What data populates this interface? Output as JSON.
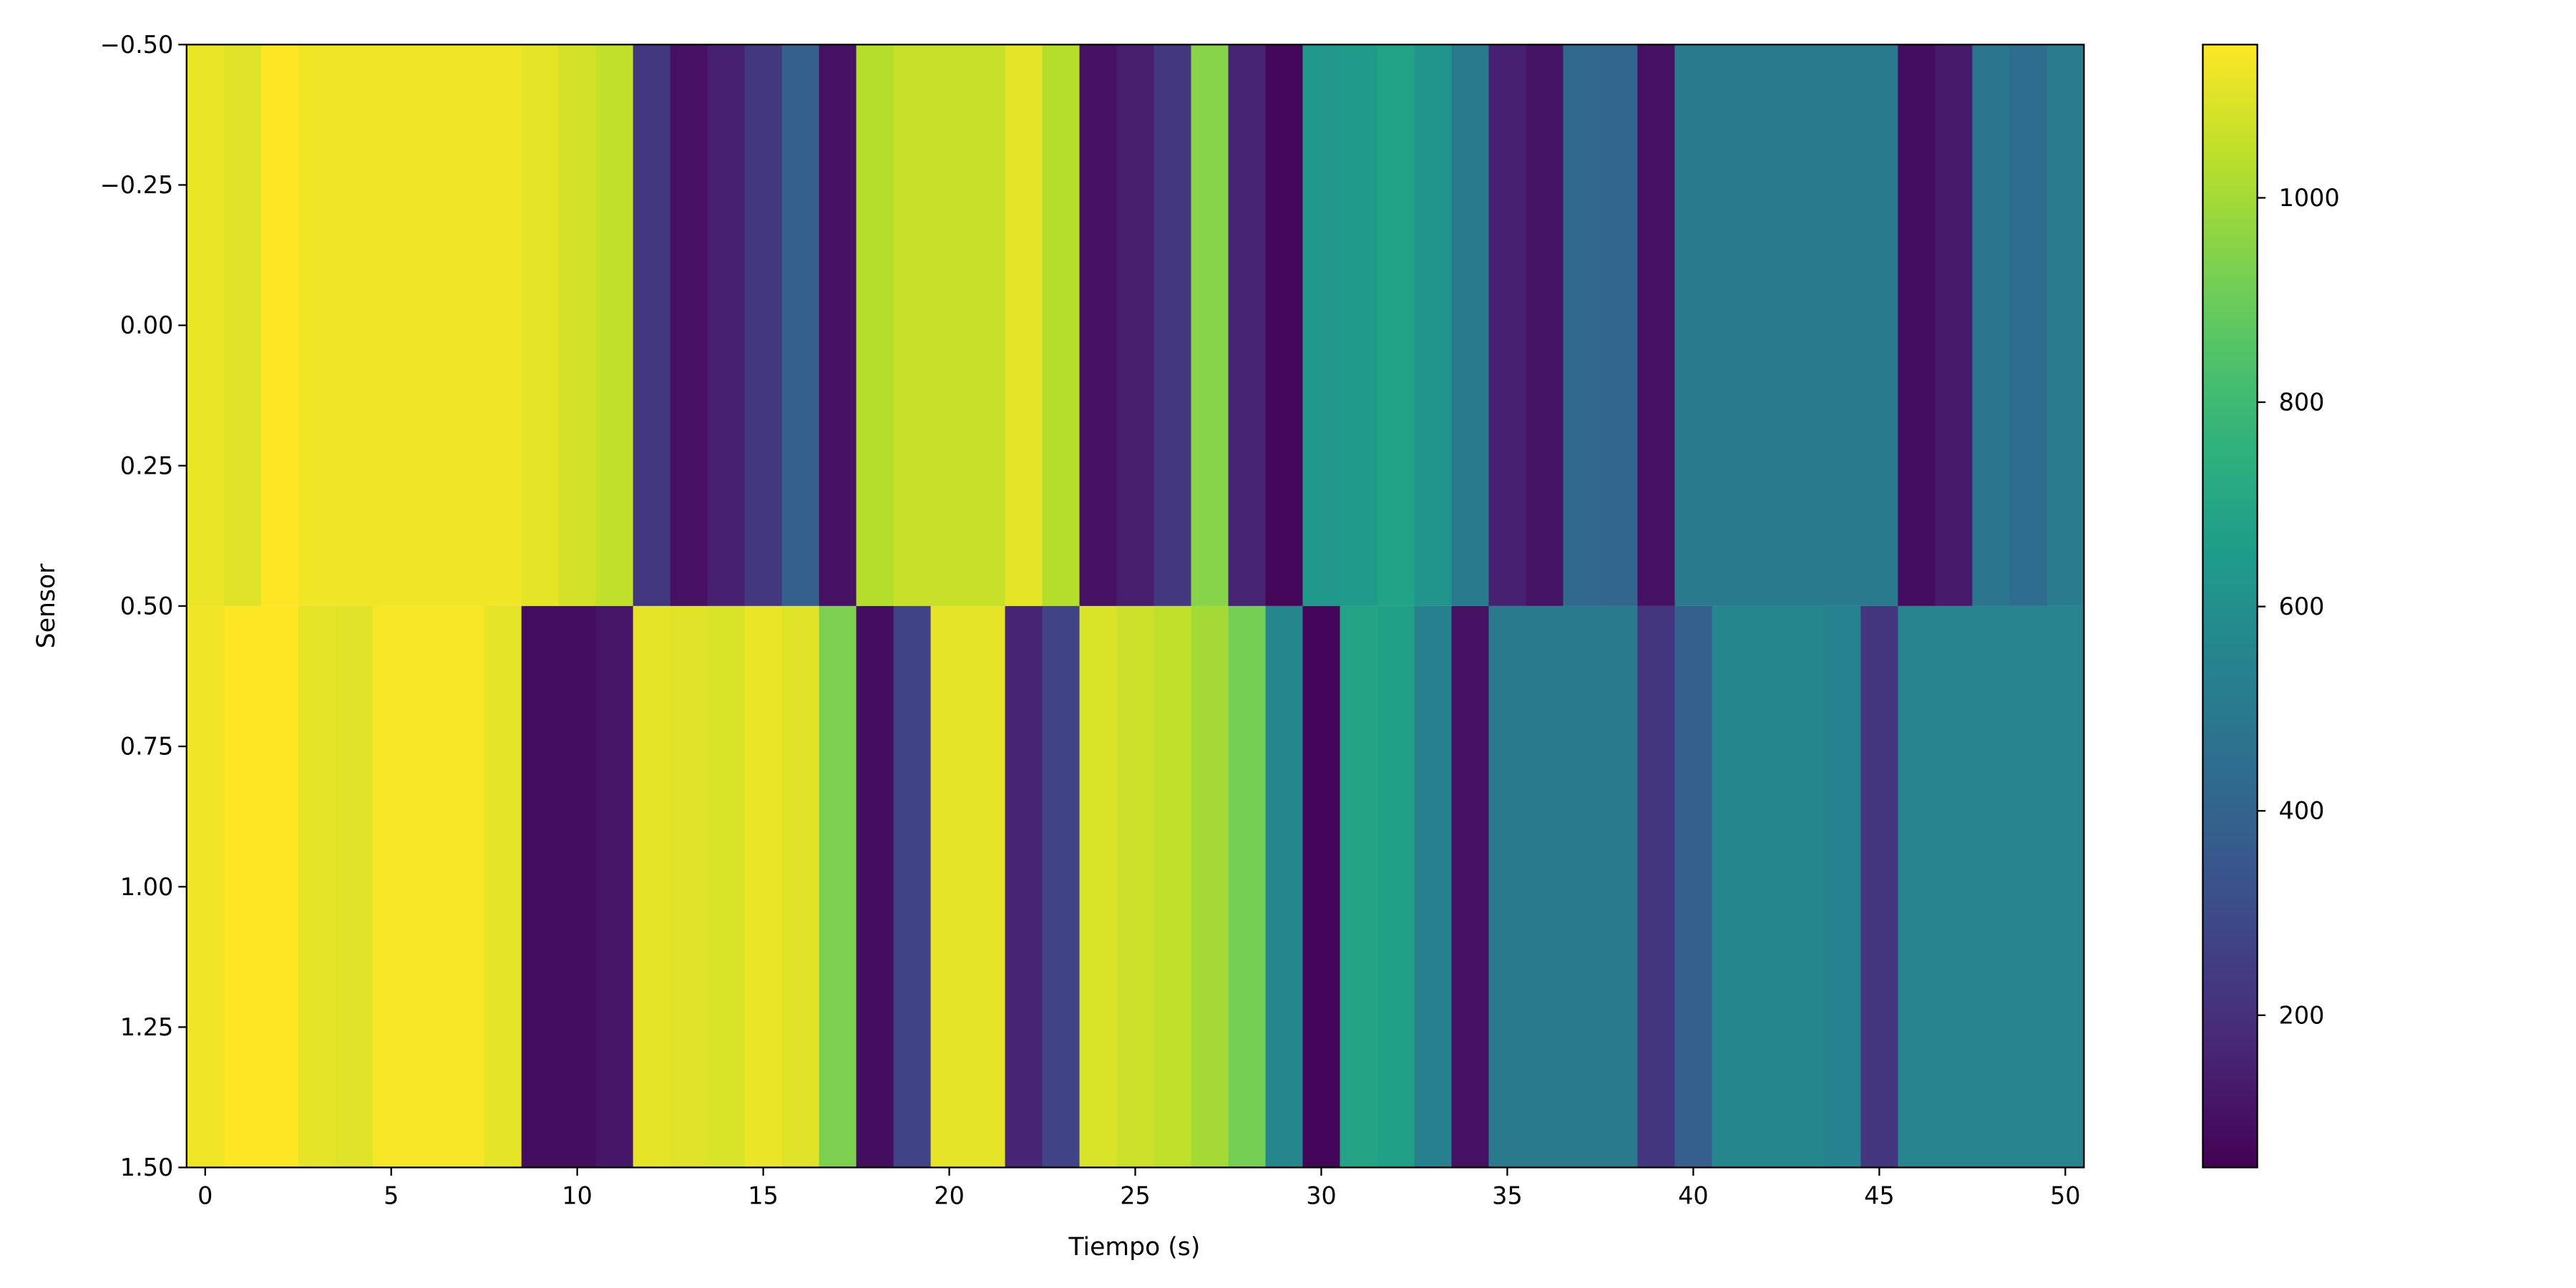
{
  "chart_data": {
    "type": "heatmap",
    "title": "",
    "xlabel": "Tiempo (s)",
    "ylabel": "Sensor",
    "x": [
      0,
      1,
      2,
      3,
      4,
      5,
      6,
      7,
      8,
      9,
      10,
      11,
      12,
      13,
      14,
      15,
      16,
      17,
      18,
      19,
      20,
      21,
      22,
      23,
      24,
      25,
      26,
      27,
      28,
      29,
      30,
      31,
      32,
      33,
      34,
      35,
      36,
      37,
      38,
      39,
      40,
      41,
      42,
      43,
      44,
      45,
      46,
      47,
      48,
      49,
      50
    ],
    "rows": [
      {
        "sensor": 0,
        "values": [
          1120,
          1100,
          1150,
          1130,
          1130,
          1130,
          1130,
          1130,
          1130,
          1110,
          1080,
          1050,
          230,
          100,
          150,
          230,
          380,
          100,
          1030,
          1060,
          1060,
          1060,
          1110,
          1030,
          100,
          140,
          230,
          950,
          160,
          70,
          640,
          650,
          680,
          620,
          500,
          150,
          110,
          420,
          410,
          100,
          500,
          500,
          500,
          500,
          500,
          500,
          90,
          130,
          480,
          440,
          510
        ]
      },
      {
        "sensor": 1,
        "values": [
          1130,
          1150,
          1150,
          1110,
          1100,
          1140,
          1140,
          1140,
          1110,
          90,
          90,
          120,
          1110,
          1100,
          1090,
          1120,
          1100,
          930,
          90,
          270,
          1110,
          1110,
          160,
          270,
          1090,
          1070,
          1050,
          1000,
          920,
          560,
          60,
          690,
          670,
          530,
          100,
          500,
          500,
          500,
          500,
          220,
          380,
          560,
          560,
          560,
          540,
          220,
          550,
          550,
          550,
          550,
          550
        ]
      }
    ],
    "xlim": [
      -0.5,
      50.5
    ],
    "ylim": [
      1.5,
      -0.5
    ],
    "xticks": [
      "0",
      "5",
      "10",
      "15",
      "20",
      "25",
      "30",
      "35",
      "40",
      "45",
      "50"
    ],
    "yticks": [
      "−0.50",
      "−0.25",
      "0.00",
      "0.25",
      "0.50",
      "0.75",
      "1.00",
      "1.25",
      "1.50"
    ],
    "colormap": "viridis",
    "colorbar": {
      "vmin": 51,
      "vmax": 1150,
      "ticks": [
        "200",
        "400",
        "600",
        "800",
        "1000"
      ]
    },
    "grid": false
  }
}
